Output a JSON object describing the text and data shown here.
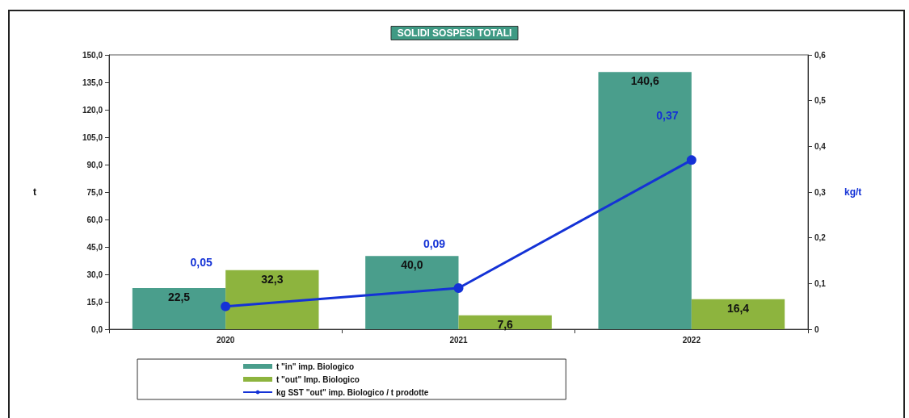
{
  "chart_data": {
    "type": "bar",
    "title": "SOLIDI SOSPESI TOTALI",
    "ylabel": "t",
    "y2label": "kg/t",
    "categories": [
      "2020",
      "2021",
      "2022"
    ],
    "series": [
      {
        "name": "t \"in\" imp. Biologico",
        "color": "#4a9e8c",
        "values": [
          22.5,
          40.0,
          140.6
        ],
        "value_labels": [
          "22,5",
          "40,0",
          "140,6"
        ]
      },
      {
        "name": "t \"out\" Imp. Biologico",
        "color": "#8db43e",
        "values": [
          32.3,
          7.6,
          16.4
        ],
        "value_labels": [
          "32,3",
          "7,6",
          "16,4"
        ]
      },
      {
        "name": "kg SST \"out\" imp. Biologico / t prodotte",
        "type": "line",
        "axis": "y2",
        "color": "#1432d6",
        "values": [
          0.05,
          0.09,
          0.37
        ],
        "value_labels": [
          "0,05",
          "0,09",
          "0,37"
        ],
        "marker": "circle",
        "line_style": "solid"
      }
    ],
    "ylim": [
      0,
      150
    ],
    "yticks": [
      {
        "value": 0,
        "label": "0,0"
      },
      {
        "value": 15,
        "label": "15,0"
      },
      {
        "value": 30,
        "label": "30,0"
      },
      {
        "value": 45,
        "label": "45,0"
      },
      {
        "value": 60,
        "label": "60,0"
      },
      {
        "value": 75,
        "label": "75,0"
      },
      {
        "value": 90,
        "label": "90,0"
      },
      {
        "value": 105,
        "label": "105,0"
      },
      {
        "value": 120,
        "label": "120,0"
      },
      {
        "value": 135,
        "label": "135,0"
      },
      {
        "value": 150,
        "label": "150,0"
      }
    ],
    "y2lim": [
      0,
      0.6
    ],
    "y2ticks": [
      0,
      {
        "value": 0.1,
        "label": "0,1"
      },
      {
        "value": 0.2,
        "label": "0,2"
      },
      {
        "value": 0.3,
        "label": "0,3"
      },
      {
        "value": 0.4,
        "label": "0,4"
      },
      {
        "value": 0.5,
        "label": "0,5"
      },
      {
        "value": 0.6,
        "label": "0,6"
      }
    ],
    "grid": false,
    "legend": "bottom"
  }
}
